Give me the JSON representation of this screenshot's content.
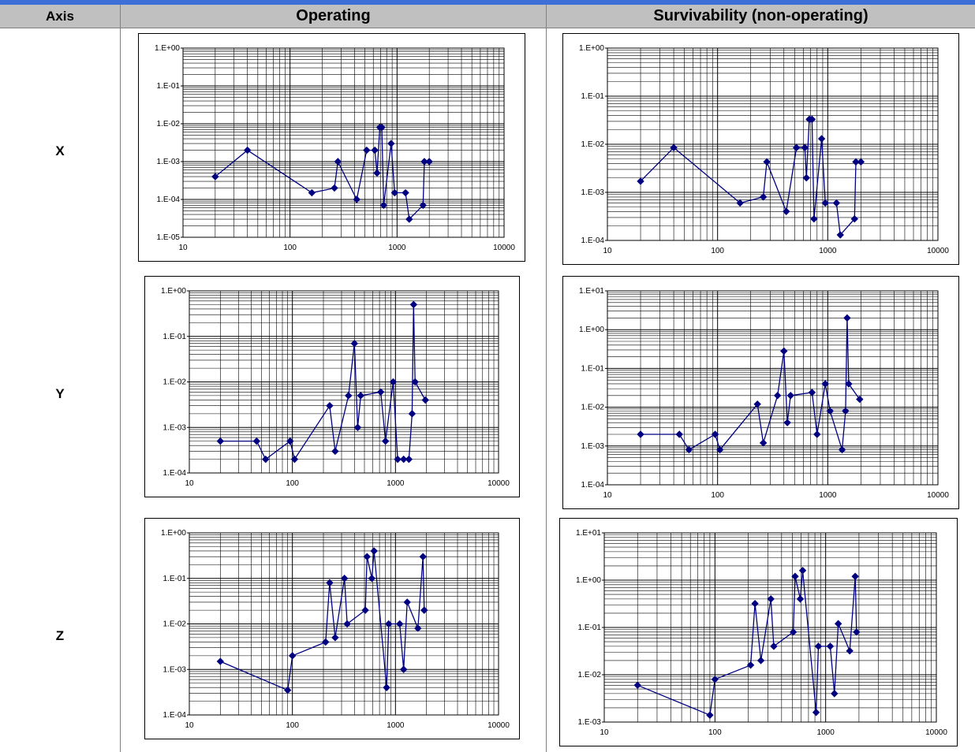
{
  "header": {
    "axis_label": "Axis",
    "operating_label": "Operating",
    "survivability_label": "Survivability (non-operating)"
  },
  "rows": [
    {
      "axis": "X"
    },
    {
      "axis": "Y"
    },
    {
      "axis": "Z"
    }
  ],
  "chart_data": [
    {
      "id": "x-operating",
      "type": "line",
      "xscale": "log",
      "yscale": "log",
      "xlim": [
        10,
        10000
      ],
      "ylim": [
        1e-05,
        1
      ],
      "xticks": [
        "10",
        "100",
        "1000",
        "10000"
      ],
      "yticks": [
        "1.E-05",
        "1.E-04",
        "1.E-03",
        "1.E-02",
        "1.E-01",
        "1.E+00"
      ],
      "color": "#000080",
      "x": [
        20,
        40,
        160,
        260,
        280,
        420,
        520,
        620,
        650,
        690,
        720,
        750,
        880,
        950,
        1200,
        1300,
        1750,
        1800,
        2000
      ],
      "y": [
        0.0004,
        0.002,
        0.00015,
        0.0002,
        0.001,
        0.0001,
        0.002,
        0.002,
        0.0005,
        0.008,
        0.008,
        7e-05,
        0.003,
        0.00015,
        0.00015,
        3e-05,
        7e-05,
        0.001,
        0.001
      ]
    },
    {
      "id": "x-survivability",
      "type": "line",
      "xscale": "log",
      "yscale": "log",
      "xlim": [
        10,
        10000
      ],
      "ylim": [
        0.0001,
        1
      ],
      "xticks": [
        "10",
        "100",
        "1000",
        "10000"
      ],
      "yticks": [
        "1.E-04",
        "1.E-03",
        "1.E-02",
        "1.E-01",
        "1.E+00"
      ],
      "color": "#000080",
      "x": [
        20,
        40,
        160,
        260,
        280,
        420,
        520,
        620,
        640,
        680,
        720,
        750,
        880,
        950,
        1200,
        1300,
        1750,
        1800,
        2000
      ],
      "y": [
        0.0017,
        0.0085,
        0.0006,
        0.0008,
        0.0043,
        0.0004,
        0.0085,
        0.0085,
        0.002,
        0.033,
        0.033,
        0.00028,
        0.013,
        0.0006,
        0.0006,
        0.00013,
        0.00028,
        0.0043,
        0.0043
      ]
    },
    {
      "id": "y-operating",
      "type": "line",
      "xscale": "log",
      "yscale": "log",
      "xlim": [
        10,
        10000
      ],
      "ylim": [
        0.0001,
        1
      ],
      "xticks": [
        "10",
        "100",
        "1000",
        "10000"
      ],
      "yticks": [
        "1.E-04",
        "1.E-03",
        "1.E-02",
        "1.E-01",
        "1.E+00"
      ],
      "color": "#000080",
      "x": [
        20,
        45,
        55,
        95,
        105,
        230,
        260,
        350,
        400,
        430,
        460,
        720,
        800,
        950,
        1050,
        1200,
        1350,
        1450,
        1500,
        1550,
        1950
      ],
      "y": [
        0.0005,
        0.0005,
        0.0002,
        0.0005,
        0.0002,
        0.003,
        0.0003,
        0.005,
        0.07,
        0.001,
        0.005,
        0.006,
        0.0005,
        0.01,
        0.0002,
        0.0002,
        0.0002,
        0.002,
        0.5,
        0.01,
        0.004
      ]
    },
    {
      "id": "y-survivability",
      "type": "line",
      "xscale": "log",
      "yscale": "log",
      "xlim": [
        10,
        10000
      ],
      "ylim": [
        0.0001,
        10
      ],
      "xticks": [
        "10",
        "100",
        "1000",
        "10000"
      ],
      "yticks": [
        "1.E-04",
        "1.E-03",
        "1.E-02",
        "1.E-01",
        "1.E+00",
        "1.E+01"
      ],
      "color": "#000080",
      "x": [
        20,
        45,
        55,
        95,
        105,
        230,
        260,
        350,
        400,
        430,
        460,
        720,
        800,
        950,
        1050,
        1350,
        1450,
        1500,
        1550,
        1950
      ],
      "y": [
        0.002,
        0.002,
        0.0008,
        0.002,
        0.0008,
        0.012,
        0.0012,
        0.02,
        0.28,
        0.004,
        0.02,
        0.024,
        0.002,
        0.04,
        0.008,
        0.0008,
        0.008,
        2.0,
        0.04,
        0.016
      ]
    },
    {
      "id": "z-operating",
      "type": "line",
      "xscale": "log",
      "yscale": "log",
      "xlim": [
        10,
        10000
      ],
      "ylim": [
        0.0001,
        1
      ],
      "xticks": [
        "10",
        "100",
        "1000",
        "10000"
      ],
      "yticks": [
        "1.E-04",
        "1.E-03",
        "1.E-02",
        "1.E-01",
        "1.E+00"
      ],
      "color": "#000080",
      "x": [
        20,
        90,
        100,
        210,
        230,
        260,
        320,
        340,
        510,
        530,
        590,
        620,
        820,
        860,
        1100,
        1200,
        1300,
        1650,
        1850,
        1900
      ],
      "y": [
        0.0015,
        0.00035,
        0.002,
        0.004,
        0.08,
        0.005,
        0.1,
        0.01,
        0.02,
        0.3,
        0.1,
        0.4,
        0.0004,
        0.01,
        0.01,
        0.001,
        0.03,
        0.008,
        0.3,
        0.02
      ]
    },
    {
      "id": "z-survivability",
      "type": "line",
      "xscale": "log",
      "yscale": "log",
      "xlim": [
        10,
        10000
      ],
      "ylim": [
        0.001,
        10
      ],
      "xticks": [
        "10",
        "100",
        "1000",
        "10000"
      ],
      "yticks": [
        "1.E-03",
        "1.E-02",
        "1.E-01",
        "1.E+00",
        "1.E+01"
      ],
      "color": "#000080",
      "x": [
        20,
        90,
        100,
        210,
        230,
        260,
        320,
        340,
        510,
        530,
        590,
        620,
        820,
        860,
        1100,
        1200,
        1300,
        1650,
        1850,
        1900
      ],
      "y": [
        0.006,
        0.0014,
        0.008,
        0.016,
        0.32,
        0.02,
        0.4,
        0.04,
        0.08,
        1.2,
        0.4,
        1.6,
        0.0016,
        0.04,
        0.04,
        0.004,
        0.12,
        0.032,
        1.2,
        0.08
      ]
    }
  ]
}
